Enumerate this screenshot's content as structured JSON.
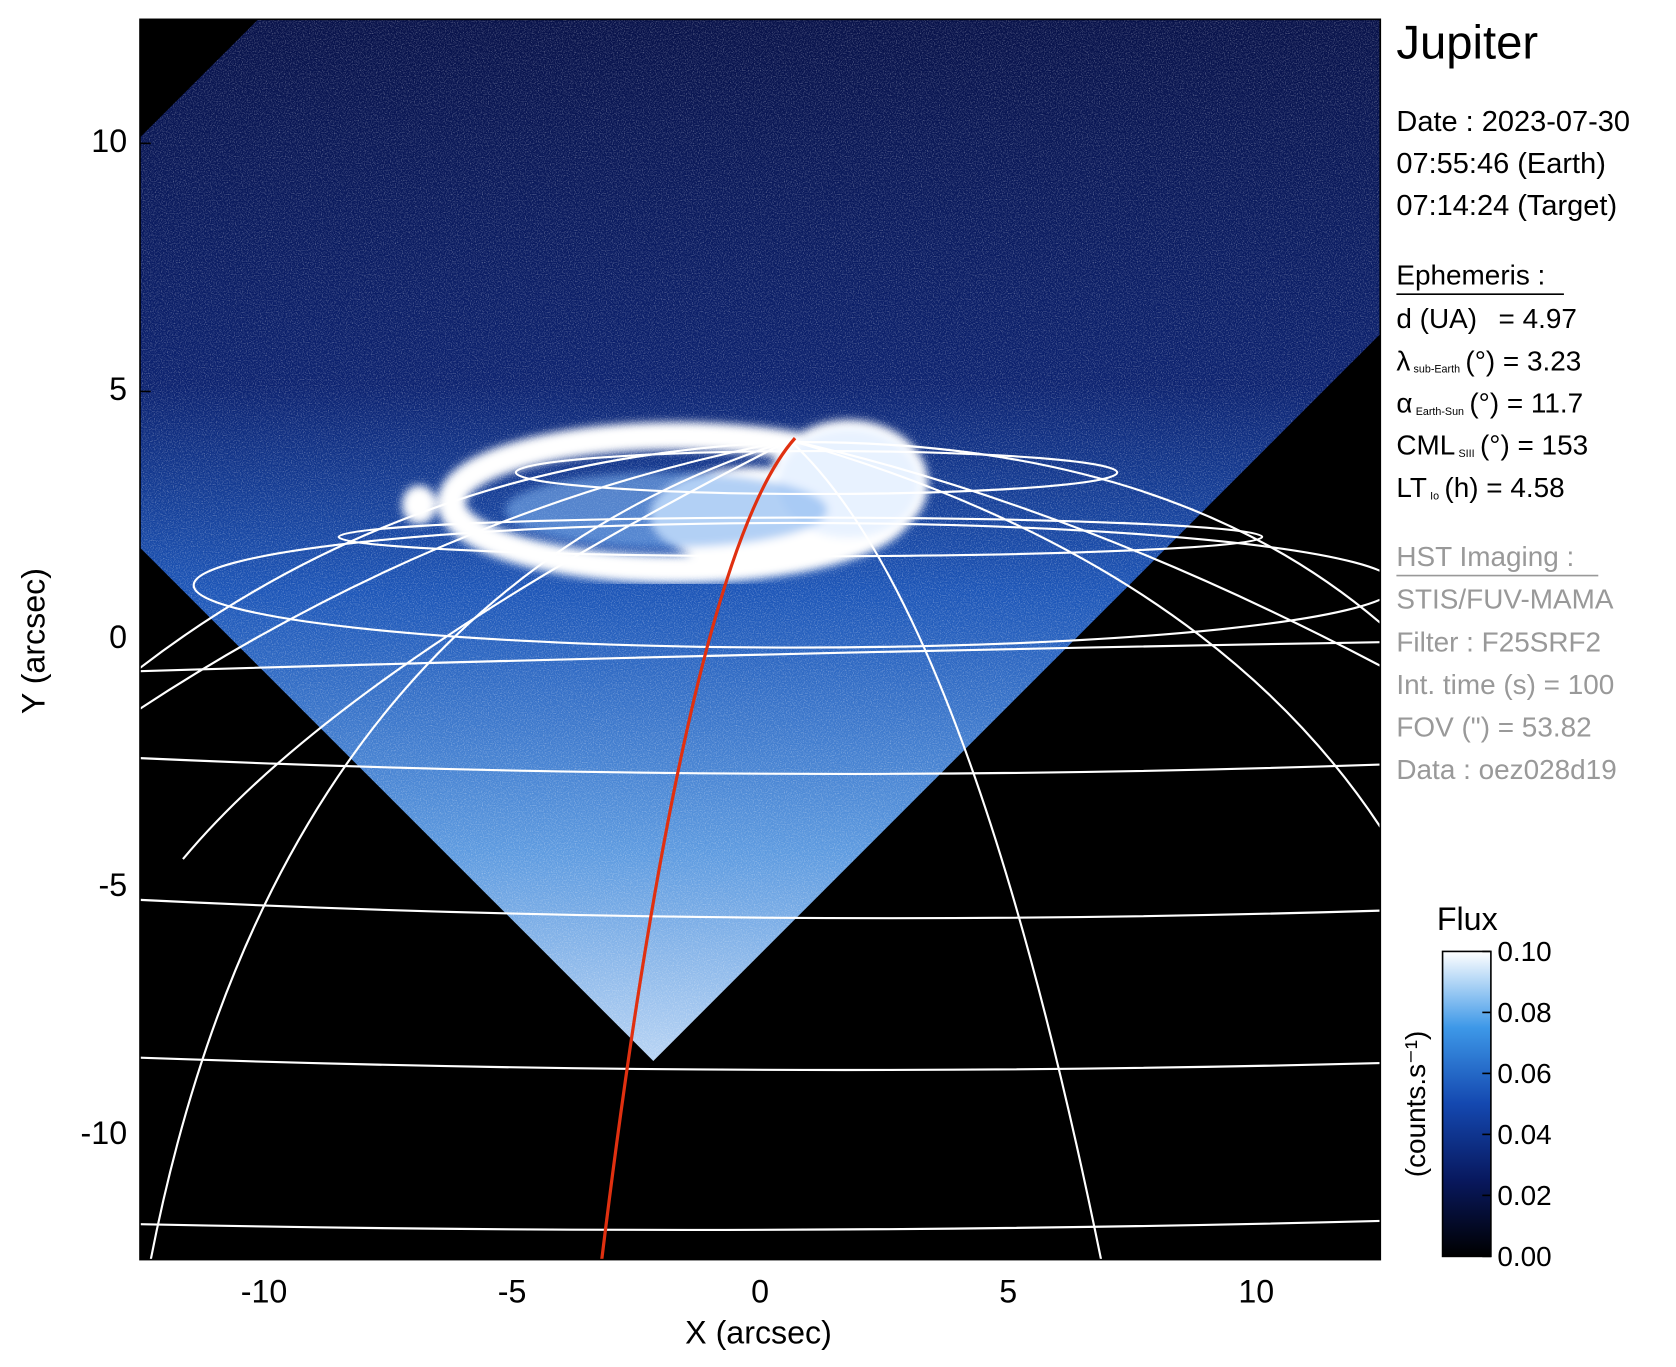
{
  "chart_data": {
    "type": "image",
    "title": "Jupiter",
    "xlabel": "X (arcsec)",
    "ylabel": "Y (arcsec)",
    "xlim": [
      -12.5,
      12.5
    ],
    "ylim": [
      -12.5,
      12.5
    ],
    "xticks": [
      -10,
      -5,
      0,
      5,
      10
    ],
    "yticks": [
      -10,
      -5,
      0,
      5,
      10
    ],
    "colorbar": {
      "title": "Flux",
      "label": "(counts.s⁻¹)",
      "lim": [
        0,
        0.1
      ],
      "ticks": [
        {
          "value": 0,
          "label": "0.00"
        },
        {
          "value": 0.02,
          "label": "0.02"
        },
        {
          "value": 0.04,
          "label": "0.04"
        },
        {
          "value": 0.06,
          "label": "0.06"
        },
        {
          "value": 0.08,
          "label": "0.08"
        },
        {
          "value": 0.1,
          "label": "0.10"
        }
      ]
    },
    "info": {
      "date": [
        "Date : 2023-07-30",
        "07:55:46 (Earth)",
        "07:14:24 (Target)"
      ],
      "ephemeris_title": "Ephemeris :",
      "ephemeris": [
        {
          "main": "d (UA)",
          "rest": "= 4.97"
        },
        {
          "main": "λ",
          "sub": "sub-Earth",
          "rest": "(°) = 3.23"
        },
        {
          "main": "α",
          "sub": "Earth-Sun",
          "rest": "(°) = 11.7"
        },
        {
          "main": "CML",
          "sub": "SIII",
          "rest": "(°) = 153"
        },
        {
          "main": "LT",
          "sub": "Io",
          "rest": "(h) = 4.58"
        }
      ],
      "imaging_title": "HST Imaging :",
      "imaging": [
        "STIS/FUV-MAMA",
        "Filter : F25SRF2",
        "Int. time (s) = 100",
        "FOV (\") = 53.82",
        "Data : oez028d19"
      ]
    }
  }
}
